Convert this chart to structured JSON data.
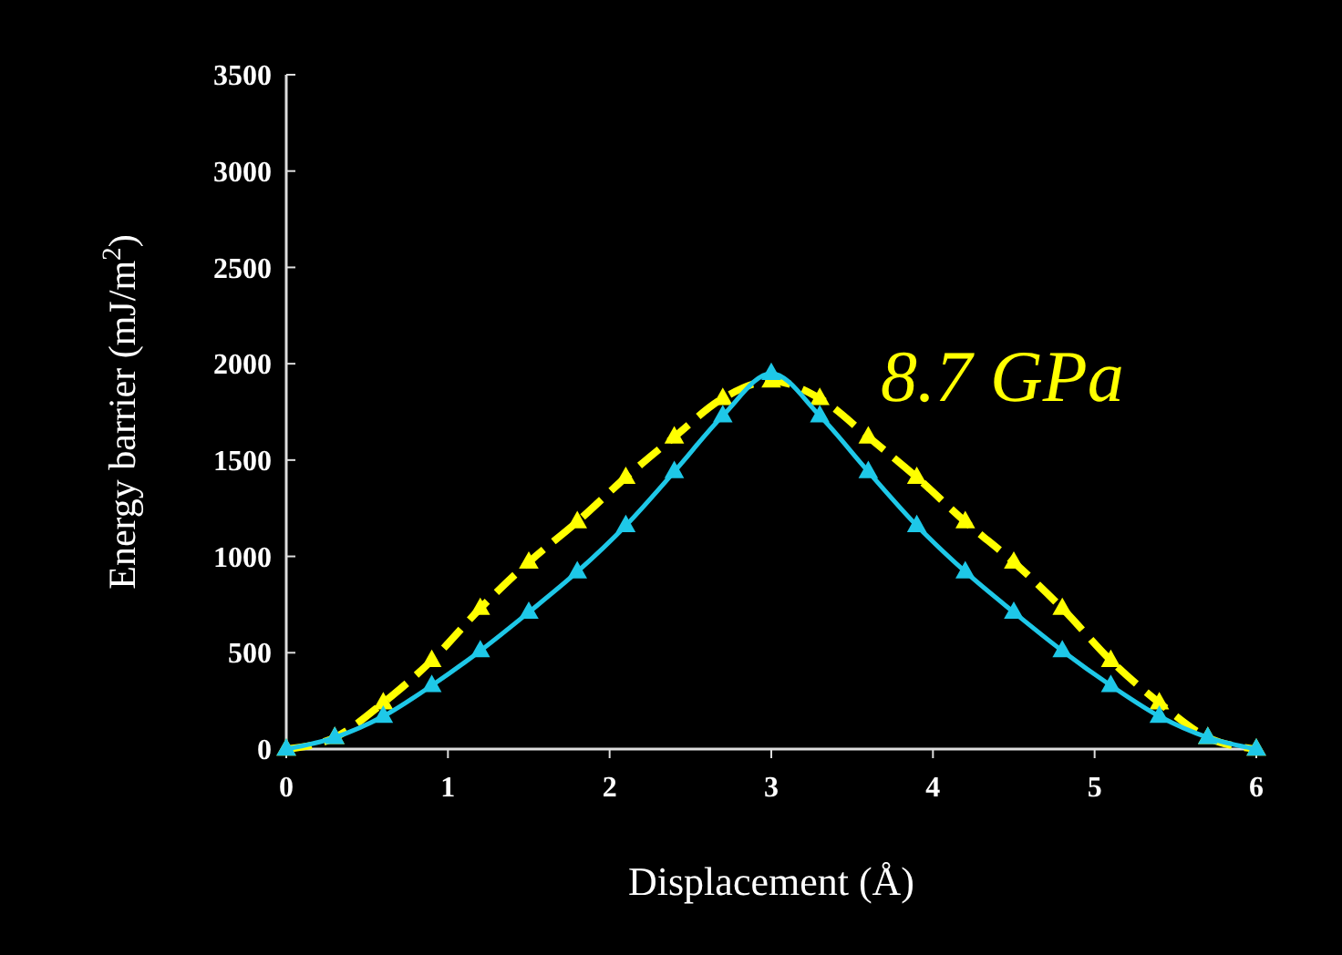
{
  "chart_data": {
    "type": "line",
    "xlabel": "Displacement (Å)",
    "ylabel": "Energy barrier (mJ/m$^{2}$)",
    "annotations": [
      "8.7 GPa"
    ],
    "x": [
      0,
      0.3,
      0.6,
      0.9,
      1.2,
      1.5,
      1.8,
      2.1,
      2.4,
      2.7,
      3.0,
      3.3,
      3.6,
      3.9,
      4.2,
      4.5,
      4.8,
      5.1,
      5.4,
      5.7,
      6.0
    ],
    "series": [
      {
        "color": "#ffff00",
        "line_style": "dashed",
        "marker": "triangle",
        "values": [
          0,
          60,
          240,
          460,
          730,
          970,
          1180,
          1410,
          1620,
          1820,
          1910,
          1820,
          1620,
          1410,
          1180,
          970,
          730,
          460,
          240,
          60,
          0
        ]
      },
      {
        "color": "#1ec8e8",
        "line_style": "solid",
        "marker": "triangle",
        "values": [
          0,
          60,
          170,
          330,
          510,
          710,
          920,
          1160,
          1440,
          1730,
          1950,
          1730,
          1440,
          1160,
          920,
          710,
          510,
          330,
          170,
          60,
          0
        ]
      }
    ],
    "xlim": [
      0,
      6
    ],
    "xticks": [
      0,
      1,
      2,
      3,
      4,
      5,
      6
    ],
    "ylim": [
      0,
      3500
    ],
    "yticks": [
      0,
      500,
      1000,
      1500,
      2000,
      2500,
      3000,
      3500
    ],
    "grid": false
  }
}
